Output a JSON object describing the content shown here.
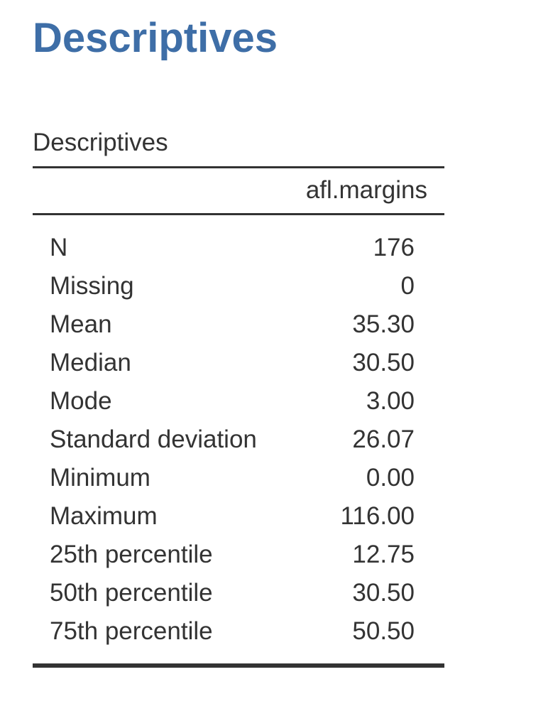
{
  "page": {
    "heading": "Descriptives"
  },
  "table": {
    "title": "Descriptives",
    "column_header": "afl.margins",
    "rows": [
      {
        "label": "N",
        "value": "176"
      },
      {
        "label": "Missing",
        "value": "0"
      },
      {
        "label": "Mean",
        "value": "35.30"
      },
      {
        "label": "Median",
        "value": "30.50"
      },
      {
        "label": "Mode",
        "value": "3.00"
      },
      {
        "label": "Standard deviation",
        "value": "26.07"
      },
      {
        "label": "Minimum",
        "value": "0.00"
      },
      {
        "label": "Maximum",
        "value": "116.00"
      },
      {
        "label": "25th percentile",
        "value": "12.75"
      },
      {
        "label": "50th percentile",
        "value": "30.50"
      },
      {
        "label": "75th percentile",
        "value": "50.50"
      }
    ]
  },
  "colors": {
    "heading": "#3e6ea7",
    "text": "#333333",
    "rules": "#333333"
  }
}
